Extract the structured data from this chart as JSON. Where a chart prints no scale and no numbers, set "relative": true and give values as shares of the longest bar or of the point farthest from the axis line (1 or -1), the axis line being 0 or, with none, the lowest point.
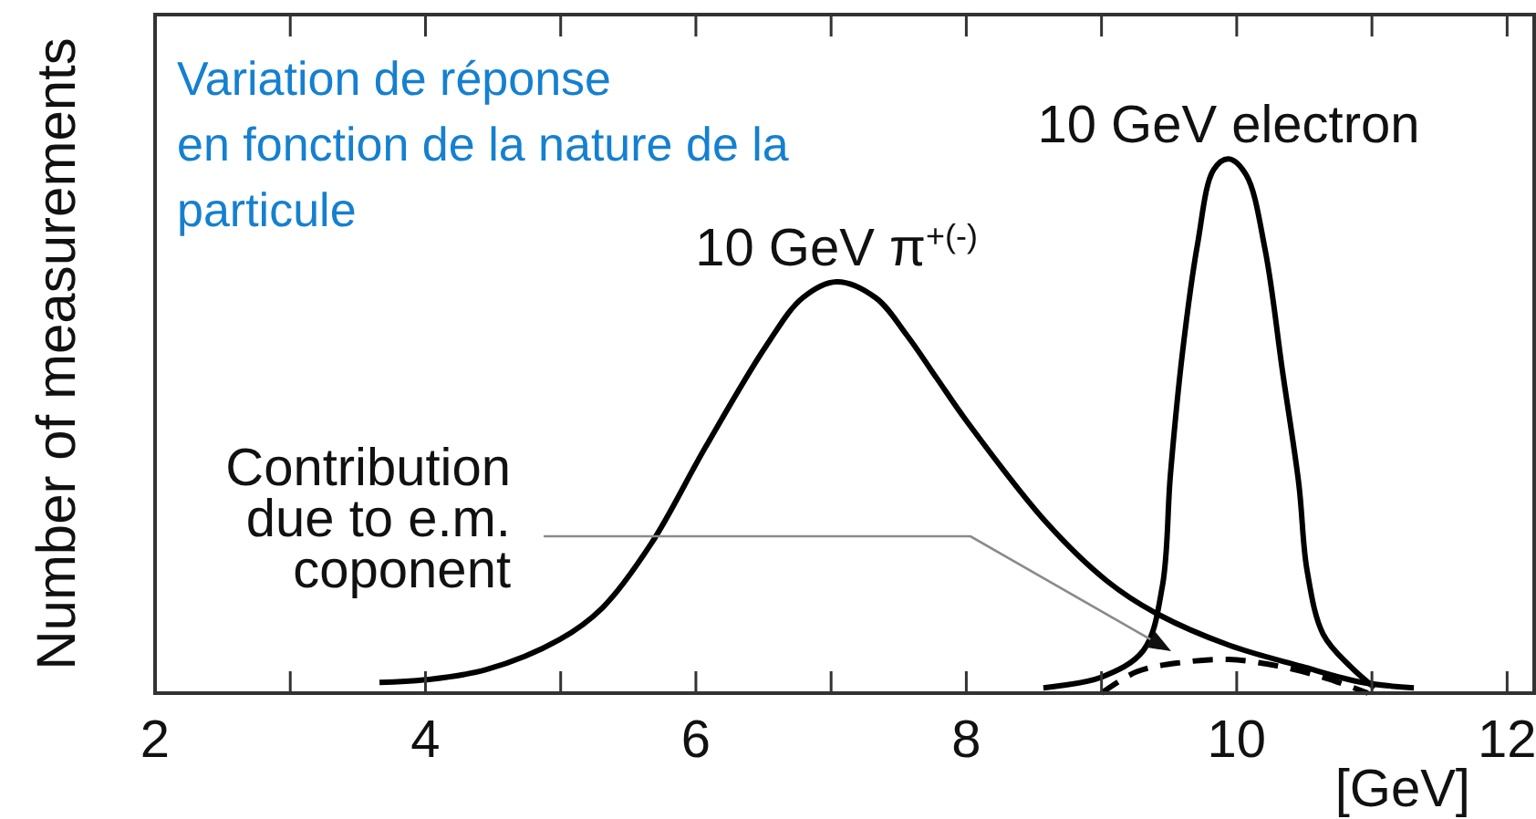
{
  "chart_data": {
    "type": "line",
    "title": "Variation de réponse\nen fonction de la nature de la\nparticule",
    "xlabel": "[GeV]",
    "ylabel": "Number of measurements",
    "relative": true,
    "xlim": [
      2,
      12.2
    ],
    "xticks": [
      2,
      {
        "value": 3,
        "label": null
      },
      4,
      {
        "value": 5,
        "label": null
      },
      6,
      {
        "value": 7,
        "label": null
      },
      8,
      {
        "value": 9,
        "label": null
      },
      10,
      {
        "value": 11,
        "label": null
      },
      12
    ],
    "series": [
      {
        "name": "10 GeV π$^{+(-)}$",
        "color": "#000000",
        "x": [
          3.66,
          4.0,
          4.45,
          4.99,
          5.31,
          5.67,
          6.07,
          6.52,
          6.79,
          7.04,
          7.33,
          7.56,
          7.78,
          8.0,
          8.59,
          9.04,
          9.4,
          9.94,
          10.48,
          10.93,
          11.31
        ],
        "values": [
          0.02,
          0.025,
          0.044,
          0.1,
          0.16,
          0.28,
          0.46,
          0.65,
          0.74,
          0.77,
          0.74,
          0.67,
          0.59,
          0.51,
          0.32,
          0.21,
          0.15,
          0.09,
          0.05,
          0.02,
          0.01
        ]
      },
      {
        "name": "10 GeV electron",
        "color": "#000000",
        "x": [
          8.57,
          9.0,
          9.31,
          9.45,
          9.51,
          9.6,
          9.71,
          9.83,
          9.94,
          10.07,
          10.21,
          10.34,
          10.46,
          10.52,
          10.64,
          10.84,
          11.02
        ],
        "values": [
          0.01,
          0.03,
          0.08,
          0.2,
          0.41,
          0.64,
          0.84,
          0.98,
          1.0,
          0.97,
          0.83,
          0.6,
          0.39,
          0.23,
          0.11,
          0.05,
          0.01
        ]
      },
      {
        "color": "#000000",
        "line_style": "dashed",
        "x": [
          9.0,
          9.26,
          9.58,
          9.94,
          10.3,
          10.66,
          10.97
        ],
        "values": [
          0,
          0.04,
          0.057,
          0.063,
          0.051,
          0.028,
          0
        ]
      }
    ],
    "annotations": [
      "Contribution\ndue to e.m.\ncoponent"
    ]
  }
}
